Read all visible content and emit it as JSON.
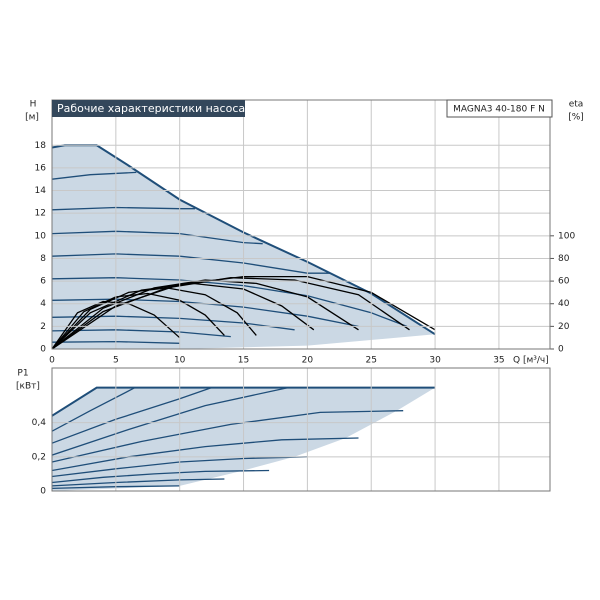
{
  "chart_data": [
    {
      "type": "line",
      "title": "Рабочие характеристики насоса",
      "subtitle": "MAGNA3 40-180 F N",
      "ylabel": "H",
      "yunit": "[м]",
      "y2label": "eta",
      "y2unit": "[%]",
      "xlabel": "Q [м³/ч]",
      "xlim": [
        0,
        39
      ],
      "xticks": [
        0,
        5,
        10,
        15,
        20,
        25,
        30,
        35
      ],
      "show_xtick_labels": true,
      "ylim": [
        0,
        22
      ],
      "yticks": [
        0,
        2,
        4,
        6,
        8,
        10,
        12,
        14,
        16,
        18
      ],
      "y2lim": [
        0,
        220
      ],
      "y2ticks": [
        0,
        20,
        40,
        60,
        80,
        100
      ],
      "grid": true,
      "series": [
        {
          "fill": "#cbd8e4",
          "x": [
            0,
            1,
            3.5,
            6,
            10,
            15,
            20,
            25,
            30,
            20,
            10,
            0
          ],
          "values": [
            17.8,
            18,
            18,
            16.2,
            13.2,
            10.3,
            7.7,
            4.9,
            1.3,
            0.3,
            0,
            0
          ]
        },
        {
          "color": "#1f4e79",
          "x": [
            0,
            1,
            3.5,
            6,
            10,
            15,
            20,
            25,
            30
          ],
          "values": [
            17.8,
            18,
            18,
            16.2,
            13.2,
            10.3,
            7.7,
            4.9,
            1.3
          ]
        },
        {
          "color": "#1f4e79",
          "x": [
            0,
            3,
            6.6
          ],
          "values": [
            15,
            15.4,
            15.6
          ]
        },
        {
          "color": "#1f4e79",
          "x": [
            0,
            5,
            10,
            11.2
          ],
          "values": [
            12.3,
            12.5,
            12.4,
            12.4
          ]
        },
        {
          "color": "#1f4e79",
          "x": [
            0,
            5,
            10,
            15,
            16.5
          ],
          "values": [
            10.2,
            10.4,
            10.2,
            9.4,
            9.3
          ]
        },
        {
          "color": "#1f4e79",
          "x": [
            0,
            5,
            10,
            15,
            20,
            21.8
          ],
          "values": [
            8.2,
            8.4,
            8.2,
            7.6,
            6.7,
            6.7
          ]
        },
        {
          "color": "#1f4e79",
          "x": [
            0,
            5,
            10,
            15,
            20,
            25,
            27.8
          ],
          "values": [
            6.2,
            6.3,
            6.1,
            5.6,
            4.7,
            3.2,
            2.0
          ]
        },
        {
          "color": "#1f4e79",
          "x": [
            0,
            5,
            10,
            15,
            20,
            24
          ],
          "values": [
            4.3,
            4.4,
            4.2,
            3.7,
            2.9,
            2.0
          ]
        },
        {
          "color": "#1f4e79",
          "x": [
            0,
            5,
            10,
            15,
            19
          ],
          "values": [
            2.8,
            2.9,
            2.7,
            2.3,
            1.7
          ]
        },
        {
          "color": "#1f4e79",
          "x": [
            0,
            5,
            10,
            14
          ],
          "values": [
            1.6,
            1.7,
            1.5,
            1.1
          ]
        },
        {
          "color": "#1f4e79",
          "x": [
            0,
            5,
            10
          ],
          "values": [
            0.6,
            0.65,
            0.5
          ]
        },
        {
          "color": "#000000",
          "axis": "y2",
          "x": [
            0,
            2,
            4,
            6,
            8,
            10
          ],
          "values": [
            0,
            32,
            42,
            40,
            30,
            10
          ]
        },
        {
          "color": "#000000",
          "axis": "y2",
          "x": [
            0,
            2.5,
            5,
            7.5,
            10,
            12,
            13.5
          ],
          "values": [
            0,
            33,
            46,
            49,
            43,
            30,
            12
          ]
        },
        {
          "color": "#000000",
          "axis": "y2",
          "x": [
            0,
            3,
            6,
            9,
            12,
            14.5,
            16
          ],
          "values": [
            0,
            35,
            50,
            54,
            48,
            32,
            12
          ]
        },
        {
          "color": "#000000",
          "axis": "y2",
          "x": [
            0,
            3,
            7,
            11,
            15,
            18,
            20.5
          ],
          "values": [
            0,
            32,
            52,
            58,
            53,
            38,
            17
          ]
        },
        {
          "color": "#000000",
          "axis": "y2",
          "x": [
            0,
            4,
            8,
            12,
            16,
            20,
            24
          ],
          "values": [
            0,
            36,
            54,
            61,
            58,
            46,
            17
          ]
        },
        {
          "color": "#000000",
          "axis": "y2",
          "x": [
            0,
            4,
            9,
            14,
            19,
            24,
            28
          ],
          "values": [
            0,
            33,
            54,
            63,
            61,
            48,
            17
          ]
        },
        {
          "color": "#000000",
          "axis": "y2",
          "x": [
            0,
            5,
            10,
            15,
            20,
            25,
            30
          ],
          "values": [
            0,
            38,
            57,
            64,
            64,
            50,
            17
          ]
        }
      ]
    },
    {
      "type": "line",
      "ylabel": "P1",
      "yunit": "[кВт]",
      "xlim": [
        0,
        39
      ],
      "xticks": [
        0,
        5,
        10,
        15,
        20,
        25,
        30,
        35
      ],
      "show_xtick_labels": false,
      "ylim": [
        0,
        0.72
      ],
      "yticks": [
        0,
        {
          "value": 0.2,
          "label": "0,2"
        },
        {
          "value": 0.4,
          "label": "0,4"
        }
      ],
      "grid": true,
      "series": [
        {
          "fill": "#cbd8e4",
          "x": [
            0,
            3.5,
            30,
            27,
            23,
            19,
            15,
            10,
            0
          ],
          "values": [
            0.44,
            0.605,
            0.605,
            0.47,
            0.31,
            0.2,
            0.12,
            0.03,
            0
          ]
        },
        {
          "color": "#1f4e79",
          "x": [
            0,
            3.5,
            30
          ],
          "values": [
            0.44,
            0.605,
            0.605
          ]
        },
        {
          "color": "#1f4e79",
          "x": [
            0,
            3,
            6.5
          ],
          "values": [
            0.35,
            0.47,
            0.605
          ]
        },
        {
          "color": "#1f4e79",
          "x": [
            0,
            5,
            10,
            12.5
          ],
          "values": [
            0.28,
            0.42,
            0.54,
            0.605
          ]
        },
        {
          "color": "#1f4e79",
          "x": [
            0,
            6,
            12,
            18.5
          ],
          "values": [
            0.21,
            0.36,
            0.5,
            0.605
          ]
        },
        {
          "color": "#1f4e79",
          "x": [
            0,
            7,
            14,
            21,
            27.5
          ],
          "values": [
            0.17,
            0.29,
            0.39,
            0.46,
            0.47
          ]
        },
        {
          "color": "#1f4e79",
          "x": [
            0,
            6,
            12,
            18,
            24
          ],
          "values": [
            0.12,
            0.2,
            0.26,
            0.3,
            0.31
          ]
        },
        {
          "color": "#1f4e79",
          "x": [
            0,
            5,
            10,
            15,
            20
          ],
          "values": [
            0.085,
            0.13,
            0.17,
            0.19,
            0.2
          ]
        },
        {
          "color": "#1f4e79",
          "x": [
            0,
            4,
            8,
            12,
            17
          ],
          "values": [
            0.05,
            0.08,
            0.1,
            0.115,
            0.12
          ]
        },
        {
          "color": "#1f4e79",
          "x": [
            0,
            5,
            10,
            13.5
          ],
          "values": [
            0.03,
            0.05,
            0.065,
            0.07
          ]
        },
        {
          "color": "#1f4e79",
          "x": [
            0,
            5,
            10
          ],
          "values": [
            0.015,
            0.025,
            0.03
          ]
        }
      ]
    }
  ]
}
